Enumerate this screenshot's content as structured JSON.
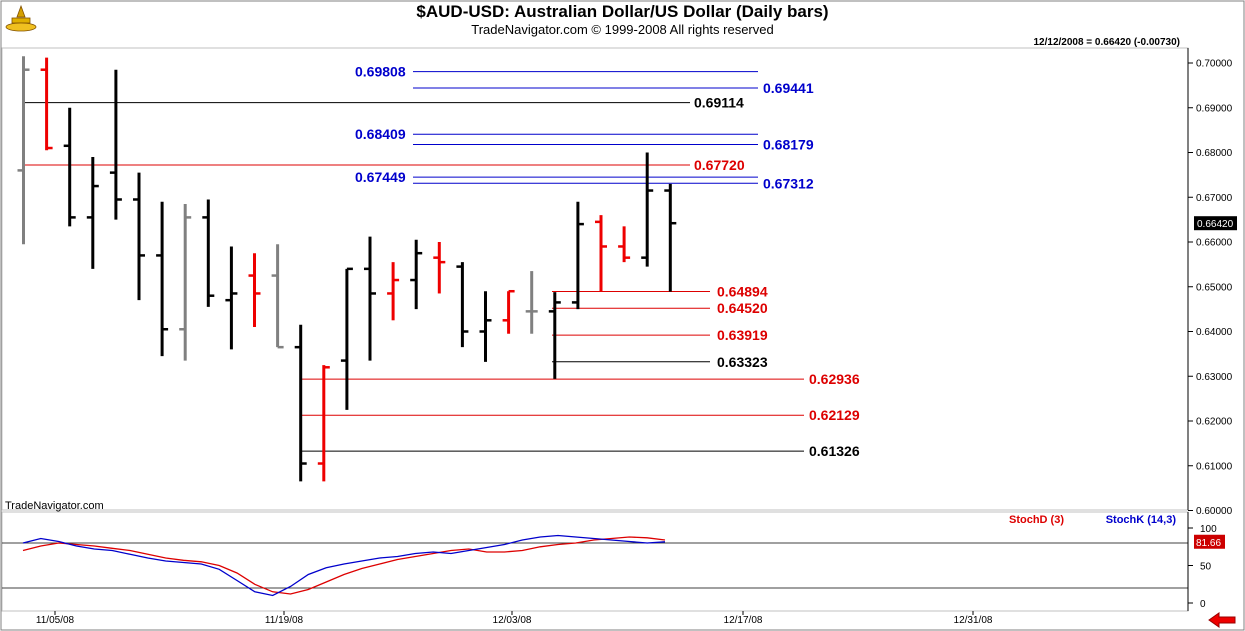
{
  "header": {
    "title": "$AUD-USD:  Australian Dollar/US Dollar  (Daily bars)",
    "subtitle": "TradeNavigator.com © 1999-2008 All rights reserved",
    "quote": "12/12/2008 = 0.66420 (-0.00730)"
  },
  "watermark": "TradeNavigator.com",
  "colors": {
    "up": "#000000",
    "down": "#ee0000",
    "neutral": "#808080",
    "blue": "#0000cc",
    "red": "#dd0000"
  },
  "chart_data": [
    {
      "type": "bar",
      "title": "$AUD-USD:  Australian Dollar/US Dollar  (Daily bars)",
      "ylim": [
        0.6,
        0.705
      ],
      "y_ticks": [
        "0.70000",
        "0.69000",
        "0.68000",
        "0.67000",
        "0.66000",
        "0.65000",
        "0.64000",
        "0.63000",
        "0.62000",
        "0.61000",
        "0.60000"
      ],
      "x_ticks": [
        "11/05/08",
        "11/19/08",
        "12/03/08",
        "12/17/08",
        "12/31/08"
      ],
      "last_price_label": "0.66420",
      "bars": [
        {
          "open": 0.676,
          "high": 0.7015,
          "low": 0.6595,
          "close": 0.6985,
          "color": "neutral"
        },
        {
          "open": 0.6985,
          "high": 0.7012,
          "low": 0.6805,
          "close": 0.681,
          "color": "down"
        },
        {
          "open": 0.6815,
          "high": 0.69,
          "low": 0.6635,
          "close": 0.6655,
          "color": "up"
        },
        {
          "open": 0.6655,
          "high": 0.679,
          "low": 0.654,
          "close": 0.6725,
          "color": "up"
        },
        {
          "open": 0.6755,
          "high": 0.6985,
          "low": 0.665,
          "close": 0.6695,
          "color": "up"
        },
        {
          "open": 0.6695,
          "high": 0.6755,
          "low": 0.647,
          "close": 0.657,
          "color": "up"
        },
        {
          "open": 0.657,
          "high": 0.669,
          "low": 0.6345,
          "close": 0.6405,
          "color": "up"
        },
        {
          "open": 0.6405,
          "high": 0.6685,
          "low": 0.6335,
          "close": 0.6655,
          "color": "neutral"
        },
        {
          "open": 0.6655,
          "high": 0.6695,
          "low": 0.6455,
          "close": 0.648,
          "color": "up"
        },
        {
          "open": 0.647,
          "high": 0.659,
          "low": 0.636,
          "close": 0.6485,
          "color": "up"
        },
        {
          "open": 0.6525,
          "high": 0.6575,
          "low": 0.641,
          "close": 0.6485,
          "color": "down"
        },
        {
          "open": 0.6525,
          "high": 0.6595,
          "low": 0.6365,
          "close": 0.6365,
          "color": "neutral"
        },
        {
          "open": 0.6365,
          "high": 0.6415,
          "low": 0.6065,
          "close": 0.6105,
          "color": "up"
        },
        {
          "open": 0.6105,
          "high": 0.6325,
          "low": 0.6065,
          "close": 0.632,
          "color": "down"
        },
        {
          "open": 0.6335,
          "high": 0.654,
          "low": 0.6225,
          "close": 0.654,
          "color": "up"
        },
        {
          "open": 0.654,
          "high": 0.6612,
          "low": 0.6335,
          "close": 0.6485,
          "color": "up"
        },
        {
          "open": 0.6485,
          "high": 0.6555,
          "low": 0.6425,
          "close": 0.6515,
          "color": "down"
        },
        {
          "open": 0.6515,
          "high": 0.6605,
          "low": 0.645,
          "close": 0.6575,
          "color": "up"
        },
        {
          "open": 0.6565,
          "high": 0.66,
          "low": 0.6485,
          "close": 0.6555,
          "color": "down"
        },
        {
          "open": 0.6545,
          "high": 0.6555,
          "low": 0.6365,
          "close": 0.64,
          "color": "up"
        },
        {
          "open": 0.64,
          "high": 0.649,
          "low": 0.6332,
          "close": 0.6425,
          "color": "up"
        },
        {
          "open": 0.6425,
          "high": 0.649,
          "low": 0.6395,
          "close": 0.649,
          "color": "down"
        },
        {
          "open": 0.6445,
          "high": 0.6535,
          "low": 0.6395,
          "close": 0.6445,
          "color": "neutral"
        },
        {
          "open": 0.6445,
          "high": 0.6488,
          "low": 0.6294,
          "close": 0.6465,
          "color": "up"
        },
        {
          "open": 0.6465,
          "high": 0.669,
          "low": 0.645,
          "close": 0.664,
          "color": "up"
        },
        {
          "open": 0.6645,
          "high": 0.666,
          "low": 0.6489,
          "close": 0.659,
          "color": "down"
        },
        {
          "open": 0.659,
          "high": 0.6635,
          "low": 0.6555,
          "close": 0.6565,
          "color": "down"
        },
        {
          "open": 0.6565,
          "high": 0.68,
          "low": 0.6545,
          "close": 0.6715,
          "color": "up"
        },
        {
          "open": 0.6715,
          "high": 0.673,
          "low": 0.6489,
          "close": 0.6642,
          "color": "up"
        }
      ],
      "levels": [
        {
          "value": 0.69808,
          "label": "0.69808",
          "color": "blue",
          "side": "left"
        },
        {
          "value": 0.69441,
          "label": "0.69441",
          "color": "blue",
          "side": "right"
        },
        {
          "value": 0.69114,
          "label": "0.69114",
          "color": "black",
          "side": "right"
        },
        {
          "value": 0.68409,
          "label": "0.68409",
          "color": "blue",
          "side": "left"
        },
        {
          "value": 0.68179,
          "label": "0.68179",
          "color": "blue",
          "side": "right"
        },
        {
          "value": 0.6772,
          "label": "0.67720",
          "color": "red",
          "side": "right"
        },
        {
          "value": 0.67449,
          "label": "0.67449",
          "color": "blue",
          "side": "left"
        },
        {
          "value": 0.67312,
          "label": "0.67312",
          "color": "blue",
          "side": "right"
        },
        {
          "value": 0.64894,
          "label": "0.64894",
          "color": "red",
          "side": "right"
        },
        {
          "value": 0.6452,
          "label": "0.64520",
          "color": "red",
          "side": "right"
        },
        {
          "value": 0.63919,
          "label": "0.63919",
          "color": "red",
          "side": "right"
        },
        {
          "value": 0.63323,
          "label": "0.63323",
          "color": "black",
          "side": "right"
        },
        {
          "value": 0.62936,
          "label": "0.62936",
          "color": "red",
          "side": "right"
        },
        {
          "value": 0.62129,
          "label": "0.62129",
          "color": "red",
          "side": "right"
        },
        {
          "value": 0.61326,
          "label": "0.61326",
          "color": "black",
          "side": "right"
        }
      ]
    },
    {
      "type": "line",
      "ylim": [
        -5,
        110
      ],
      "y_ticks": [
        "100",
        "50",
        "0"
      ],
      "reference_lines": [
        80,
        20
      ],
      "last_value_label": "81.66",
      "series": [
        {
          "name": "StochD (3)",
          "color": "red",
          "values": [
            70,
            76,
            80,
            78,
            76,
            73,
            70,
            65,
            60,
            57,
            55,
            50,
            40,
            25,
            15,
            12,
            18,
            28,
            38,
            46,
            52,
            58,
            62,
            66,
            70,
            72,
            68,
            68,
            70,
            75,
            78,
            80,
            84,
            86,
            88,
            87,
            84
          ]
        },
        {
          "name": "StochK (14,3)",
          "color": "blue",
          "values": [
            80,
            86,
            82,
            76,
            72,
            70,
            65,
            60,
            56,
            54,
            52,
            45,
            30,
            15,
            10,
            22,
            38,
            47,
            52,
            56,
            60,
            62,
            66,
            68,
            66,
            70,
            74,
            78,
            84,
            88,
            90,
            88,
            86,
            84,
            82,
            80,
            81.66
          ]
        }
      ]
    }
  ]
}
